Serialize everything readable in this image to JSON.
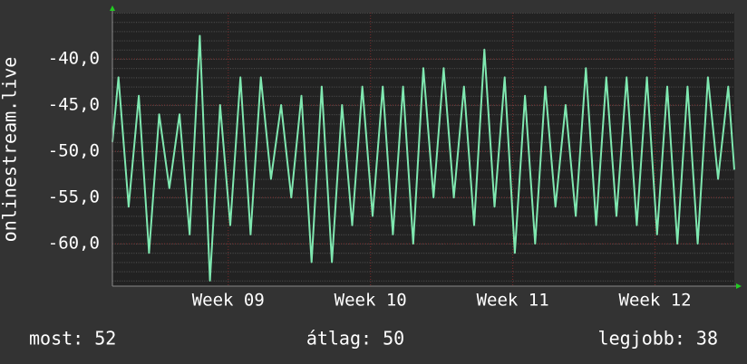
{
  "chart_data": {
    "type": "line",
    "y_label": "onlinestream.live",
    "x": [
      0,
      0.3,
      0.8,
      1.3,
      1.8,
      2.3,
      2.8,
      3.3,
      3.8,
      4.3,
      4.8,
      5.3,
      5.8,
      6.3,
      6.8,
      7.3,
      7.8,
      8.3,
      8.8,
      9.3,
      9.8,
      10.3,
      10.8,
      11.3,
      11.8,
      12.3,
      12.8,
      13.3,
      13.8,
      14.3,
      14.8,
      15.3,
      15.8,
      16.3,
      16.8,
      17.3,
      17.8,
      18.3,
      18.8,
      19.3,
      19.8,
      20.3,
      20.8,
      21.3,
      21.8,
      22.3,
      22.8,
      23.3,
      23.8,
      24.3,
      24.8,
      25.3,
      25.8,
      26.3,
      26.8,
      27.3,
      27.8,
      28.3,
      28.8,
      29.3,
      29.8,
      30.3,
      30.6
    ],
    "series": [
      {
        "color": "#7fe8b0",
        "values": [
          -49,
          -42,
          -56,
          -44,
          -61,
          -46,
          -54,
          -46,
          -59,
          -37.5,
          -64,
          -45,
          -58,
          -42,
          -59,
          -42,
          -53,
          -45,
          -55,
          -44,
          -62,
          -43,
          -62,
          -45,
          -58,
          -43,
          -57,
          -43,
          -59,
          -43,
          -60,
          -41,
          -55,
          -41,
          -55,
          -43,
          -58,
          -39,
          -56,
          -42,
          -61,
          -44,
          -60,
          -43,
          -56,
          -45,
          -57,
          -41,
          -58,
          -42,
          -57,
          -42,
          -58,
          -42,
          -59,
          -43,
          -60,
          -43,
          -60,
          -42,
          -53,
          -43,
          -52
        ]
      }
    ],
    "xlim": [
      0,
      30.6
    ],
    "xticks": [
      {
        "value": 5.7,
        "label": "Week 09"
      },
      {
        "value": 12.7,
        "label": "Week 10"
      },
      {
        "value": 19.7,
        "label": "Week 11"
      },
      {
        "value": 26.7,
        "label": "Week 12"
      }
    ],
    "ylim": [
      -64.6,
      -35
    ],
    "yticks": [
      {
        "value": -40,
        "label": "-40,0"
      },
      {
        "value": -45,
        "label": "-45,0"
      },
      {
        "value": -50,
        "label": "-50,0"
      },
      {
        "value": -55,
        "label": "-55,0"
      },
      {
        "value": -60,
        "label": "-60,0"
      }
    ],
    "grid": true,
    "stats": [
      "most: 52",
      "átlag: 50",
      "legjobb: 38"
    ]
  }
}
